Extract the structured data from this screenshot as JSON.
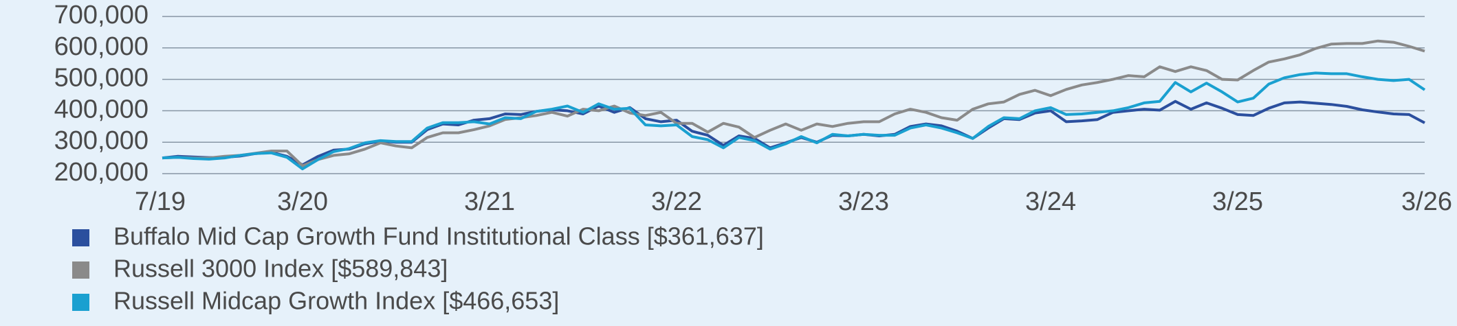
{
  "chart_data": {
    "type": "line",
    "categories": [
      "7/19",
      null,
      null,
      null,
      null,
      null,
      null,
      null,
      null,
      "3/20",
      null,
      null,
      null,
      null,
      null,
      null,
      null,
      null,
      null,
      null,
      null,
      "3/21",
      null,
      null,
      null,
      null,
      null,
      null,
      null,
      null,
      null,
      null,
      null,
      "3/22",
      null,
      null,
      null,
      null,
      null,
      null,
      null,
      null,
      null,
      null,
      null,
      "3/23",
      null,
      null,
      null,
      null,
      null,
      null,
      null,
      null,
      null,
      null,
      null,
      "3/24",
      null,
      null,
      null,
      null,
      null,
      null,
      null,
      null,
      null,
      null,
      null,
      "3/25",
      null,
      null,
      null,
      null,
      null,
      null,
      null,
      null,
      null,
      null,
      null,
      "3/26"
    ],
    "series": [
      {
        "name": "Buffalo Mid Cap Growth Fund Institutional Class [$361,637]",
        "color": "#2b4f9e",
        "values": [
          250000,
          255000,
          253000,
          251000,
          252000,
          256000,
          264000,
          268000,
          255000,
          228000,
          255000,
          275000,
          278000,
          295000,
          303000,
          300000,
          300000,
          340000,
          358000,
          355000,
          370000,
          375000,
          390000,
          388000,
          398000,
          403000,
          400000,
          390000,
          415000,
          395000,
          410000,
          375000,
          365000,
          370000,
          335000,
          322000,
          290000,
          320000,
          312000,
          282000,
          298000,
          315000,
          300000,
          322000,
          320000,
          325000,
          320000,
          325000,
          350000,
          358000,
          352000,
          335000,
          312000,
          345000,
          375000,
          372000,
          393000,
          400000,
          365000,
          368000,
          372000,
          395000,
          400000,
          405000,
          402000,
          430000,
          405000,
          425000,
          408000,
          388000,
          385000,
          408000,
          425000,
          428000,
          424000,
          420000,
          414000,
          403000,
          396000,
          390000,
          388000,
          361637
        ]
      },
      {
        "name": "Russell 3000 Index [$589,843]",
        "color": "#8a8a8a",
        "values": [
          250000,
          252000,
          250000,
          250000,
          255000,
          258000,
          265000,
          272000,
          272000,
          225000,
          245000,
          258000,
          263000,
          278000,
          298000,
          288000,
          282000,
          315000,
          330000,
          330000,
          340000,
          352000,
          372000,
          378000,
          385000,
          395000,
          383000,
          405000,
          400000,
          415000,
          393000,
          385000,
          395000,
          360000,
          360000,
          332000,
          360000,
          348000,
          315000,
          338000,
          358000,
          338000,
          358000,
          350000,
          360000,
          365000,
          365000,
          390000,
          405000,
          395000,
          378000,
          370000,
          405000,
          422000,
          428000,
          452000,
          465000,
          448000,
          468000,
          482000,
          490000,
          500000,
          512000,
          508000,
          540000,
          525000,
          540000,
          528000,
          500000,
          498000,
          528000,
          555000,
          565000,
          578000,
          598000,
          612000,
          614000,
          614000,
          622000,
          618000,
          605000,
          589843
        ]
      },
      {
        "name": "Russell Midcap Growth Index [$466,653]",
        "color": "#1aa0d0",
        "values": [
          250000,
          252000,
          248000,
          246000,
          250000,
          258000,
          264000,
          266000,
          252000,
          215000,
          245000,
          270000,
          280000,
          298000,
          305000,
          302000,
          302000,
          345000,
          362000,
          362000,
          365000,
          358000,
          378000,
          375000,
          398000,
          405000,
          415000,
          395000,
          422000,
          405000,
          408000,
          355000,
          352000,
          355000,
          318000,
          308000,
          282000,
          315000,
          305000,
          278000,
          295000,
          318000,
          298000,
          325000,
          320000,
          325000,
          322000,
          322000,
          345000,
          355000,
          345000,
          330000,
          312000,
          350000,
          378000,
          375000,
          400000,
          410000,
          388000,
          390000,
          395000,
          400000,
          410000,
          425000,
          430000,
          490000,
          460000,
          488000,
          460000,
          428000,
          440000,
          485000,
          505000,
          515000,
          520000,
          518000,
          518000,
          508000,
          500000,
          496000,
          500000,
          466653
        ]
      }
    ],
    "ylim": [
      200000,
      700000
    ],
    "yticks": [
      {
        "value": 200000,
        "label": "200,000"
      },
      {
        "value": 300000,
        "label": "300,000"
      },
      {
        "value": 400000,
        "label": "400,000"
      },
      {
        "value": 500000,
        "label": "500,000"
      },
      {
        "value": 600000,
        "label": "600,000"
      },
      {
        "value": 700000,
        "label": "700,000"
      }
    ],
    "grid": true
  }
}
